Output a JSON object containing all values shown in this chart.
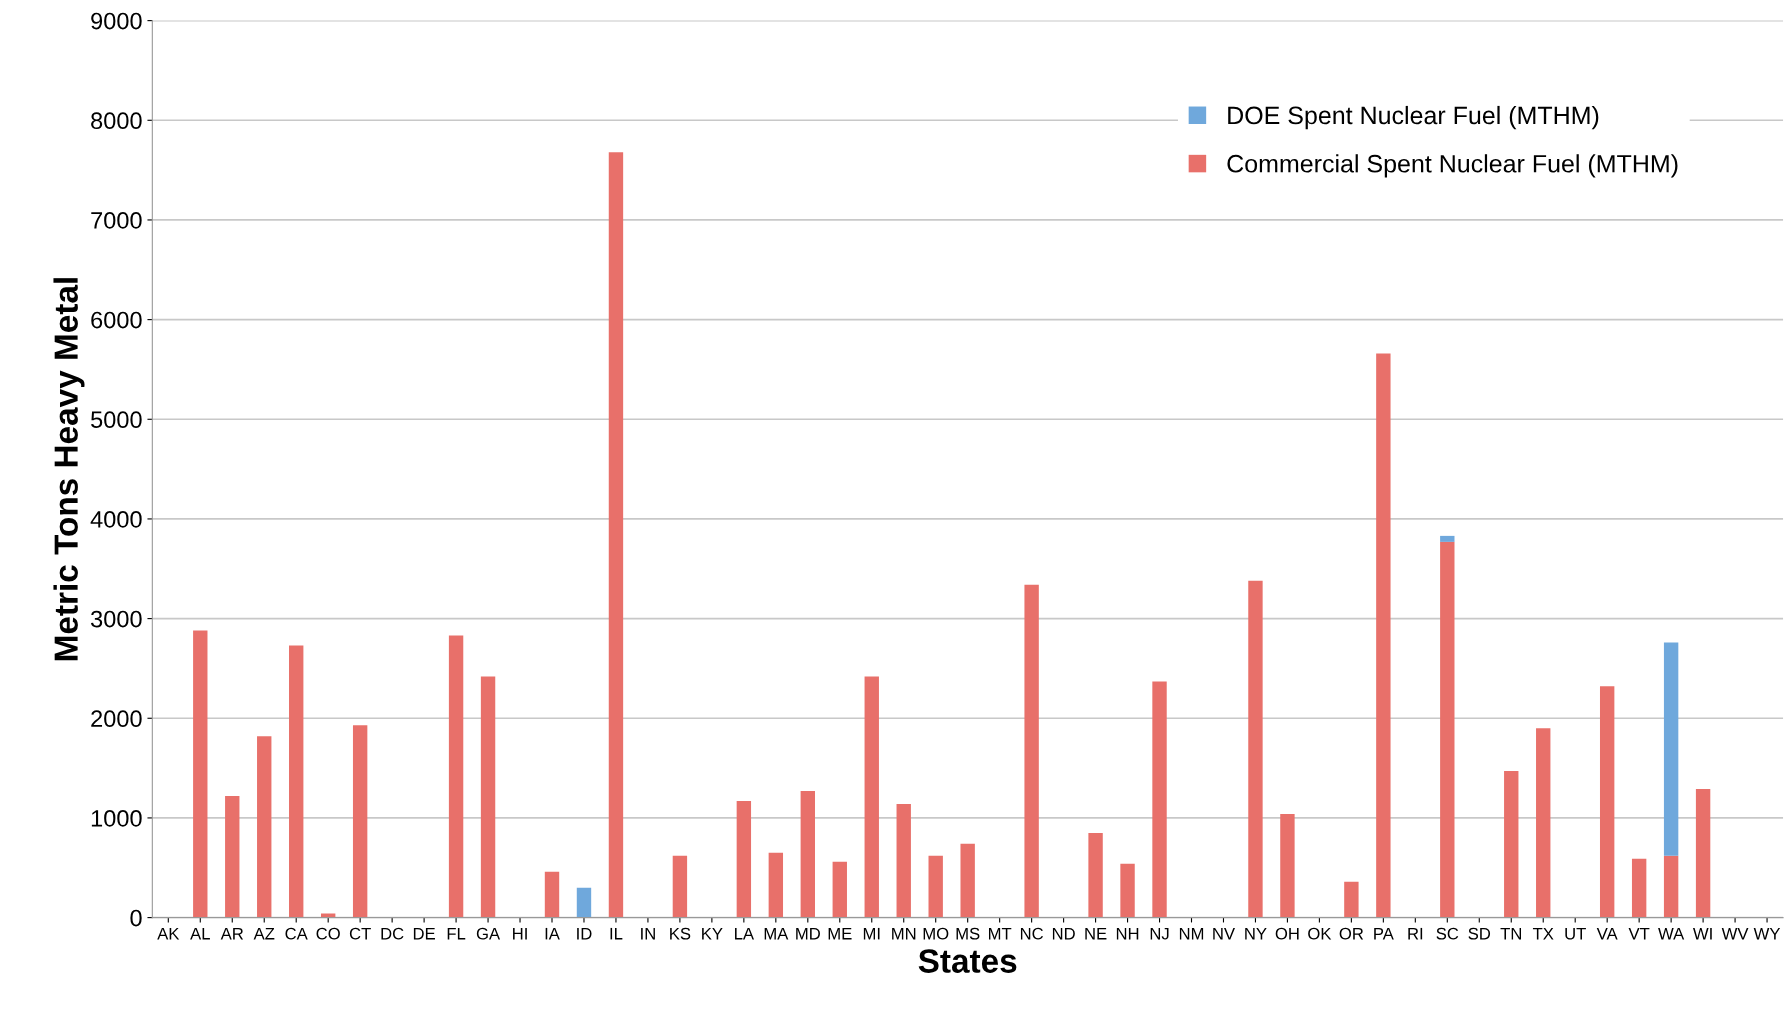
{
  "chart_data": {
    "type": "bar",
    "stacked": true,
    "xlabel": "States",
    "ylabel": "Metric Tons Heavy Metal",
    "categories": [
      "AK",
      "AL",
      "AR",
      "AZ",
      "CA",
      "CO",
      "CT",
      "DC",
      "DE",
      "FL",
      "GA",
      "HI",
      "IA",
      "ID",
      "IL",
      "IN",
      "KS",
      "KY",
      "LA",
      "MA",
      "MD",
      "ME",
      "MI",
      "MN",
      "MO",
      "MS",
      "MT",
      "NC",
      "ND",
      "NE",
      "NH",
      "NJ",
      "NM",
      "NV",
      "NY",
      "OH",
      "OK",
      "OR",
      "PA",
      "RI",
      "SC",
      "SD",
      "TN",
      "TX",
      "UT",
      "VA",
      "VT",
      "WA",
      "WI",
      "WV",
      "WY"
    ],
    "series": [
      {
        "name": "Commercial Spent Nuclear Fuel (MTHM)",
        "color": "#e8706a",
        "values": [
          0,
          2880,
          1220,
          1820,
          2730,
          40,
          1930,
          0,
          0,
          2830,
          2420,
          0,
          460,
          0,
          7680,
          0,
          620,
          0,
          1170,
          650,
          1270,
          560,
          2420,
          1140,
          620,
          740,
          0,
          3340,
          0,
          850,
          540,
          2370,
          0,
          0,
          3380,
          1040,
          0,
          360,
          5660,
          0,
          3770,
          0,
          1470,
          1900,
          0,
          2320,
          590,
          620,
          1290,
          0,
          0
        ]
      },
      {
        "name": "DOE Spent Nuclear Fuel (MTHM)",
        "color": "#6fa8dc",
        "values": [
          0,
          0,
          0,
          0,
          0,
          0,
          0,
          0,
          0,
          0,
          0,
          0,
          0,
          300,
          0,
          0,
          0,
          0,
          0,
          0,
          0,
          0,
          0,
          0,
          0,
          0,
          0,
          0,
          0,
          0,
          0,
          0,
          0,
          0,
          0,
          0,
          0,
          0,
          0,
          0,
          60,
          0,
          0,
          0,
          0,
          0,
          0,
          2140,
          0,
          0,
          0
        ]
      }
    ],
    "ylim": [
      0,
      9000
    ],
    "yticks": [
      0,
      1000,
      2000,
      3000,
      4000,
      5000,
      6000,
      7000,
      8000,
      9000
    ],
    "grid": "y",
    "legend": "top right"
  }
}
